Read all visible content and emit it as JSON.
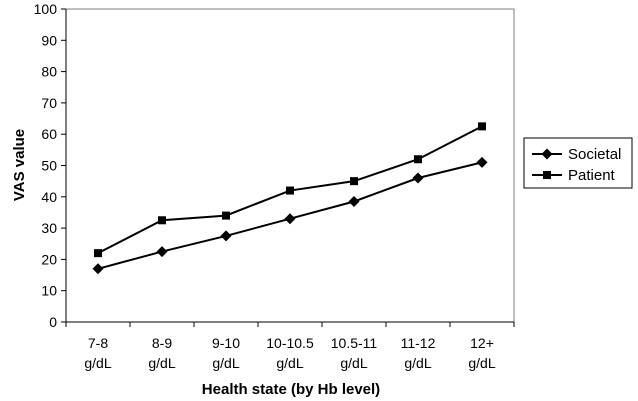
{
  "chart_data": {
    "type": "line",
    "xlabel": "Health state (by Hb level)",
    "ylabel": "VAS value",
    "ylim": [
      0,
      100
    ],
    "ytick_step": 10,
    "grid": false,
    "legend_position": "right",
    "categories": [
      [
        "7-8",
        "g/dL"
      ],
      [
        "8-9",
        "g/dL"
      ],
      [
        "9-10",
        "g/dL"
      ],
      [
        "10-10.5",
        "g/dL"
      ],
      [
        "10.5-11",
        "g/dL"
      ],
      [
        "11-12",
        "g/dL"
      ],
      [
        "12+",
        "g/dL"
      ]
    ],
    "series": [
      {
        "name": "Societal",
        "marker": "diamond",
        "color": "#000000",
        "values": [
          17,
          22.5,
          27.5,
          33,
          38.5,
          46,
          51
        ]
      },
      {
        "name": "Patient",
        "marker": "square",
        "color": "#000000",
        "values": [
          22,
          32.5,
          34,
          42,
          45,
          52,
          62.5
        ]
      }
    ]
  }
}
